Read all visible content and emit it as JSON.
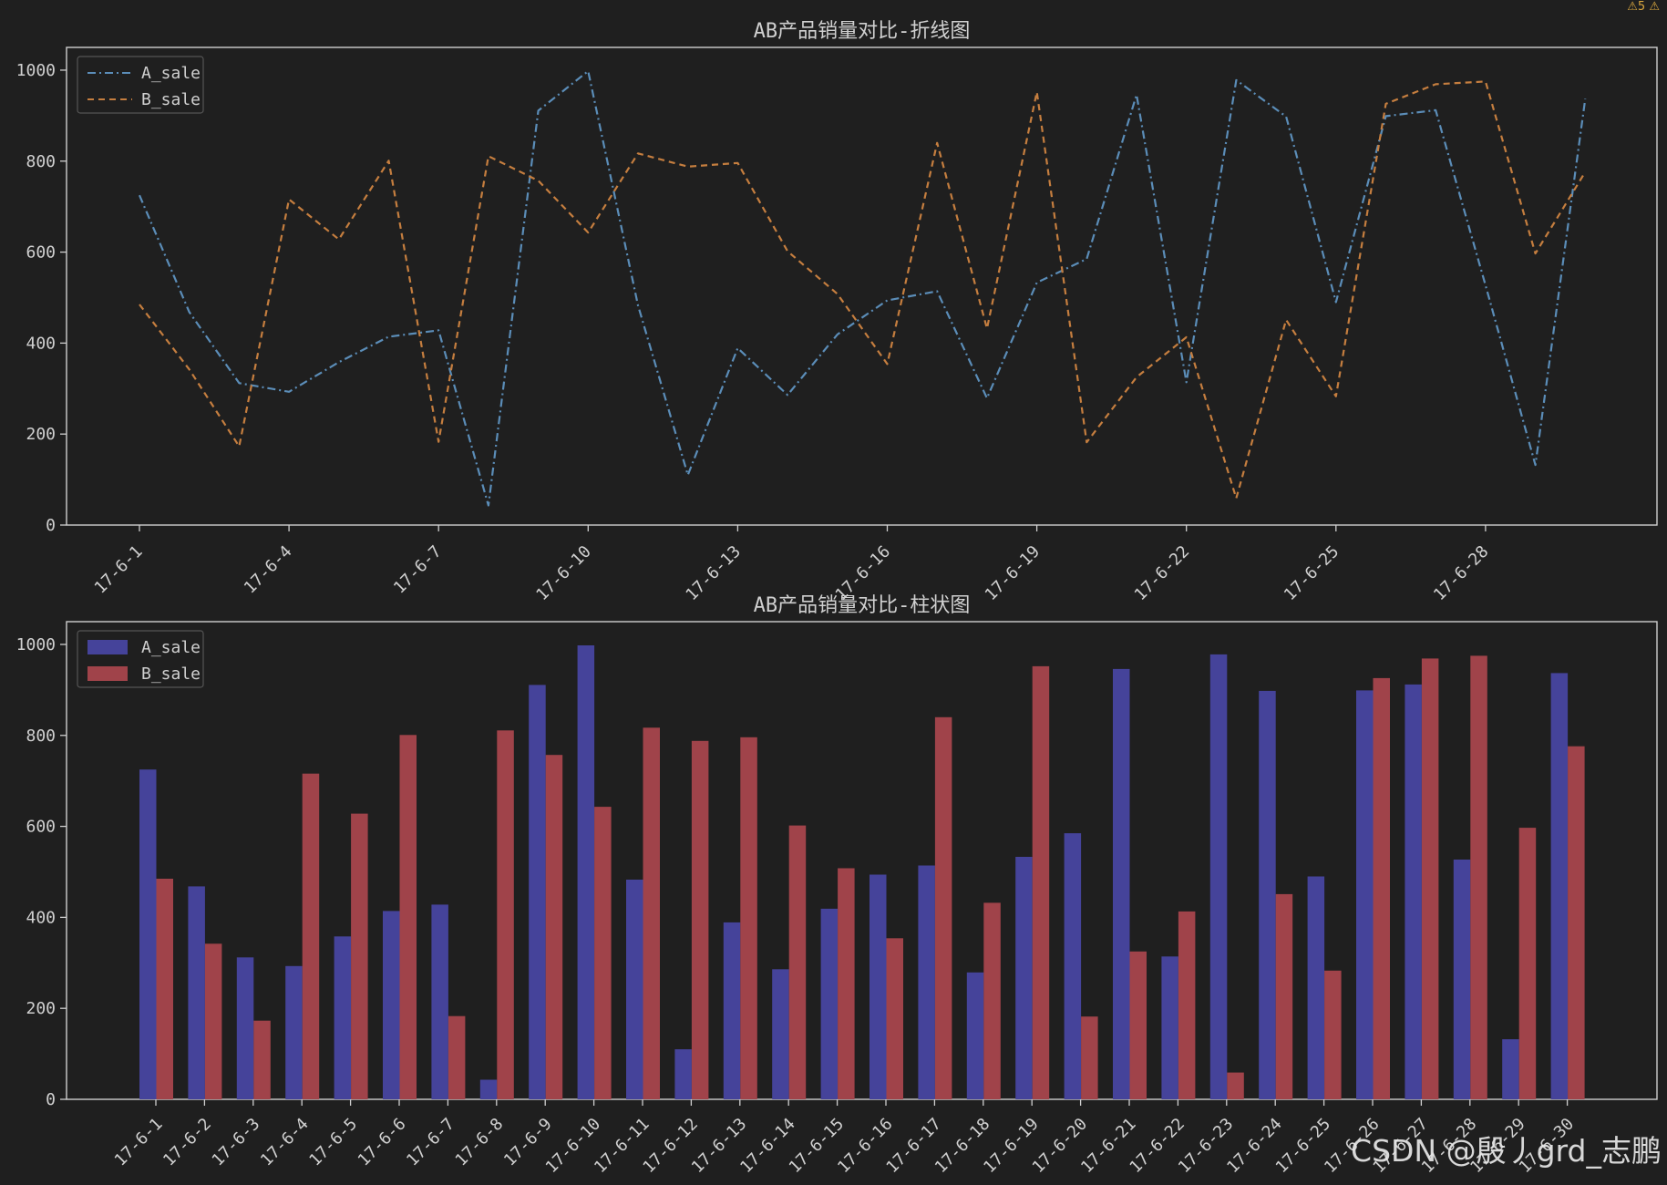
{
  "corner_badge": "⚠5 ⚠",
  "watermark": "CSDN @殷丿grd_志鹏",
  "chart_data": [
    {
      "type": "line",
      "title": "AB产品销量对比-折线图",
      "xlabel": "",
      "ylabel": "",
      "ylim": [
        0,
        1050
      ],
      "yticks": [
        0,
        200,
        400,
        600,
        800,
        1000
      ],
      "x": [
        "17-6-1",
        "17-6-2",
        "17-6-3",
        "17-6-4",
        "17-6-5",
        "17-6-6",
        "17-6-7",
        "17-6-8",
        "17-6-9",
        "17-6-10",
        "17-6-11",
        "17-6-12",
        "17-6-13",
        "17-6-14",
        "17-6-15",
        "17-6-16",
        "17-6-17",
        "17-6-18",
        "17-6-19",
        "17-6-20",
        "17-6-21",
        "17-6-22",
        "17-6-23",
        "17-6-24",
        "17-6-25",
        "17-6-26",
        "17-6-27",
        "17-6-28",
        "17-6-29",
        "17-6-30"
      ],
      "xticks": [
        "17-6-1",
        "17-6-4",
        "17-6-7",
        "17-6-10",
        "17-6-13",
        "17-6-16",
        "17-6-19",
        "17-6-22",
        "17-6-25",
        "17-6-28"
      ],
      "series": [
        {
          "name": "A_sale",
          "color": "#5b8db8",
          "dash": "dashdot",
          "values": [
            725,
            468,
            312,
            293,
            358,
            414,
            428,
            43,
            911,
            998,
            483,
            110,
            389,
            286,
            419,
            494,
            514,
            279,
            533,
            585,
            946,
            314,
            978,
            898,
            490,
            899,
            912,
            527,
            132,
            937
          ]
        },
        {
          "name": "B_sale",
          "color": "#c57e3f",
          "dash": "dashed",
          "values": [
            485,
            342,
            173,
            716,
            628,
            801,
            183,
            811,
            757,
            643,
            817,
            788,
            796,
            602,
            508,
            354,
            840,
            432,
            952,
            182,
            325,
            413,
            59,
            451,
            283,
            926,
            969,
            975,
            597,
            776
          ]
        }
      ],
      "legend": "top-left",
      "grid": false
    },
    {
      "type": "bar",
      "title": "AB产品销量对比-柱状图",
      "xlabel": "",
      "ylabel": "",
      "ylim": [
        0,
        1050
      ],
      "yticks": [
        0,
        200,
        400,
        600,
        800,
        1000
      ],
      "categories": [
        "17-6-1",
        "17-6-2",
        "17-6-3",
        "17-6-4",
        "17-6-5",
        "17-6-6",
        "17-6-7",
        "17-6-8",
        "17-6-9",
        "17-6-10",
        "17-6-11",
        "17-6-12",
        "17-6-13",
        "17-6-14",
        "17-6-15",
        "17-6-16",
        "17-6-17",
        "17-6-18",
        "17-6-19",
        "17-6-20",
        "17-6-21",
        "17-6-22",
        "17-6-23",
        "17-6-24",
        "17-6-25",
        "17-6-26",
        "17-6-27",
        "17-6-28",
        "17-6-29",
        "17-6-30"
      ],
      "series": [
        {
          "name": "A_sale",
          "color": "#45439a",
          "values": [
            725,
            468,
            312,
            293,
            358,
            414,
            428,
            43,
            911,
            998,
            483,
            110,
            389,
            286,
            419,
            494,
            514,
            279,
            533,
            585,
            946,
            314,
            978,
            898,
            490,
            899,
            912,
            527,
            132,
            937
          ]
        },
        {
          "name": "B_sale",
          "color": "#a0434a",
          "values": [
            485,
            342,
            173,
            716,
            628,
            801,
            183,
            811,
            757,
            643,
            817,
            788,
            796,
            602,
            508,
            354,
            840,
            432,
            952,
            182,
            325,
            413,
            59,
            451,
            283,
            926,
            969,
            975,
            597,
            776
          ]
        }
      ],
      "legend": "top-left",
      "grid": false
    }
  ]
}
